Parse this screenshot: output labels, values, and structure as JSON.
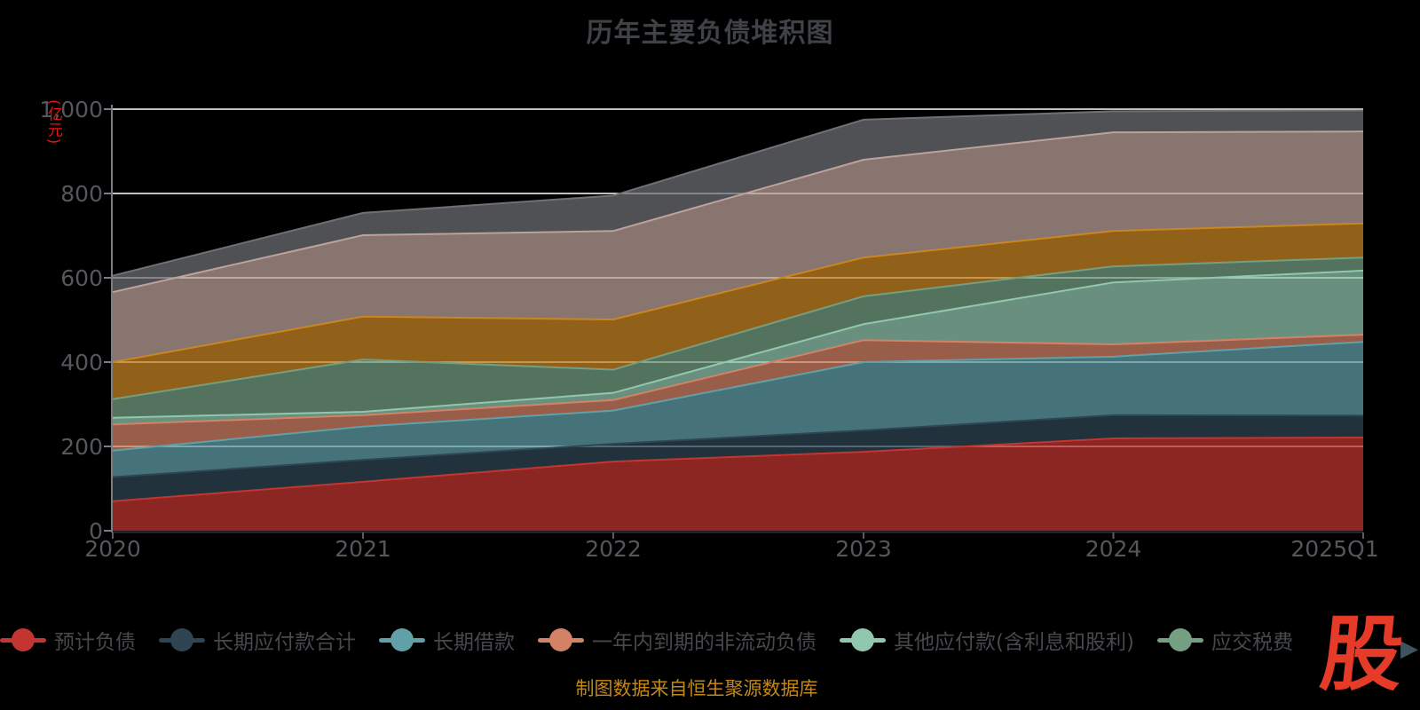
{
  "title": "历年主要负债堆积图",
  "footer": "制图数据来自恒生聚源数据库",
  "logo": {
    "text": "股",
    "arrow": "▶"
  },
  "colors": {
    "background": "#000000",
    "title_text": "#3f4246",
    "axis_text": "#54575b",
    "legend_text": "#46494d",
    "grid_line": "#ffffff",
    "y_axis_line": "#7a7e84",
    "x_axis_line": "#2e3237",
    "axis_unit_text": "#ee1111",
    "footer_text": "#c1871a",
    "logo_red": "#e53b28",
    "scroll_arrow": "#40545f"
  },
  "chart_data": {
    "type": "area",
    "stacked": true,
    "title": "历年主要负债堆积图",
    "categories": [
      "2020",
      "2021",
      "2022",
      "2023",
      "2024",
      "2025Q1"
    ],
    "x_axis": {
      "tick_labels": [
        "2020",
        "2021",
        "2022",
        "2023",
        "2024",
        "2025Q1"
      ]
    },
    "y_axis": {
      "name": "(亿元)",
      "min": 0,
      "max": 1000,
      "tick_values": [
        1000,
        800,
        600,
        400,
        200,
        0
      ],
      "tick_labels": [
        "1,000",
        "800",
        "600",
        "400",
        "200",
        "0"
      ]
    },
    "grid": true,
    "legend_position": "bottom",
    "legend_scrollable": true,
    "series": [
      {
        "name": "预计负债",
        "color": "#c23531",
        "in_legend": true,
        "values": [
          70,
          116,
          164,
          187,
          219,
          221
        ]
      },
      {
        "name": "长期应付款合计",
        "color": "#2f4554",
        "in_legend": true,
        "values": [
          57,
          52,
          42,
          51,
          55,
          52
        ]
      },
      {
        "name": "长期借款",
        "color": "#61a0a8",
        "in_legend": true,
        "values": [
          63,
          79,
          79,
          162,
          139,
          175
        ]
      },
      {
        "name": "一年内到期的非流动负债",
        "color": "#d48265",
        "in_legend": true,
        "values": [
          62,
          27,
          25,
          52,
          29,
          17
        ]
      },
      {
        "name": "其他应付款(含利息和股利)",
        "color": "#91c7ae",
        "in_legend": true,
        "values": [
          16,
          8,
          17,
          38,
          147,
          152
        ]
      },
      {
        "name": "应交税费",
        "color": "#749f83",
        "in_legend": true,
        "values": [
          44,
          124,
          55,
          66,
          38,
          31
        ]
      },
      {
        "name": "",
        "color": "#ca8622",
        "in_legend": false,
        "values": [
          88,
          102,
          119,
          92,
          84,
          81
        ]
      },
      {
        "name": "",
        "color": "#bda29a",
        "in_legend": false,
        "values": [
          166,
          193,
          210,
          232,
          234,
          218
        ]
      },
      {
        "name": "",
        "color": "#6e7074",
        "in_legend": false,
        "values": [
          39,
          53,
          84,
          95,
          50,
          50
        ]
      }
    ]
  }
}
